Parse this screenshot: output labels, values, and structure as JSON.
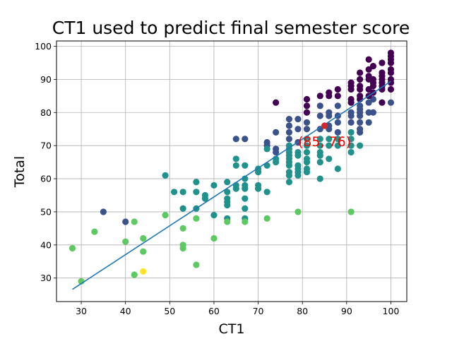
{
  "chart_data": {
    "type": "scatter",
    "title": "CT1 used to predict final semester score",
    "xlabel": "CT1",
    "ylabel": "Total",
    "xlim": [
      24.4,
      103.6
    ],
    "ylim": [
      22.9,
      101.6
    ],
    "xticks": [
      30,
      40,
      50,
      60,
      70,
      80,
      90,
      100
    ],
    "yticks": [
      30,
      40,
      50,
      60,
      70,
      80,
      90,
      100
    ],
    "grid": true,
    "colors": {
      "fit_line": "#1f77b4",
      "highlight": "#d62728",
      "annotation": "#ff0000",
      "grid": "#b0b0b0",
      "palette": [
        "#440154",
        "#3b528b",
        "#21918c",
        "#5ec962",
        "#fde725"
      ]
    },
    "points": [
      {
        "x": 100,
        "y": 98,
        "c": 0
      },
      {
        "x": 100,
        "y": 97,
        "c": 0
      },
      {
        "x": 100,
        "y": 96,
        "c": 0
      },
      {
        "x": 100,
        "y": 95,
        "c": 0
      },
      {
        "x": 100,
        "y": 93,
        "c": 0
      },
      {
        "x": 100,
        "y": 92,
        "c": 0
      },
      {
        "x": 100,
        "y": 90,
        "c": 0
      },
      {
        "x": 100,
        "y": 89,
        "c": 0
      },
      {
        "x": 100,
        "y": 87,
        "c": 0
      },
      {
        "x": 100,
        "y": 83,
        "c": 1
      },
      {
        "x": 98,
        "y": 95,
        "c": 0
      },
      {
        "x": 98,
        "y": 92,
        "c": 0
      },
      {
        "x": 98,
        "y": 91,
        "c": 0
      },
      {
        "x": 98,
        "y": 90,
        "c": 0
      },
      {
        "x": 98,
        "y": 89,
        "c": 0
      },
      {
        "x": 98,
        "y": 88,
        "c": 0
      },
      {
        "x": 98,
        "y": 87,
        "c": 0
      },
      {
        "x": 98,
        "y": 83,
        "c": 0
      },
      {
        "x": 96,
        "y": 94,
        "c": 0
      },
      {
        "x": 96,
        "y": 90,
        "c": 0
      },
      {
        "x": 96,
        "y": 89,
        "c": 0
      },
      {
        "x": 96,
        "y": 88,
        "c": 0
      },
      {
        "x": 96,
        "y": 86,
        "c": 0
      },
      {
        "x": 96,
        "y": 84,
        "c": 1
      },
      {
        "x": 96,
        "y": 80,
        "c": 1
      },
      {
        "x": 95,
        "y": 96,
        "c": 0
      },
      {
        "x": 95,
        "y": 93,
        "c": 0
      },
      {
        "x": 95,
        "y": 91,
        "c": 0
      },
      {
        "x": 95,
        "y": 90,
        "c": 0
      },
      {
        "x": 95,
        "y": 87,
        "c": 0
      },
      {
        "x": 95,
        "y": 85,
        "c": 0
      },
      {
        "x": 95,
        "y": 83,
        "c": 1
      },
      {
        "x": 95,
        "y": 80,
        "c": 1
      },
      {
        "x": 95,
        "y": 77,
        "c": 1
      },
      {
        "x": 93,
        "y": 92,
        "c": 0
      },
      {
        "x": 93,
        "y": 90,
        "c": 0
      },
      {
        "x": 93,
        "y": 88,
        "c": 0
      },
      {
        "x": 93,
        "y": 87,
        "c": 0
      },
      {
        "x": 93,
        "y": 85,
        "c": 0
      },
      {
        "x": 93,
        "y": 84,
        "c": 0
      },
      {
        "x": 93,
        "y": 82,
        "c": 1
      },
      {
        "x": 93,
        "y": 81,
        "c": 1
      },
      {
        "x": 93,
        "y": 80,
        "c": 1
      },
      {
        "x": 93,
        "y": 79,
        "c": 1
      },
      {
        "x": 93,
        "y": 77,
        "c": 1
      },
      {
        "x": 93,
        "y": 75,
        "c": 1
      },
      {
        "x": 93,
        "y": 74,
        "c": 1
      },
      {
        "x": 93,
        "y": 70,
        "c": 2
      },
      {
        "x": 91,
        "y": 89,
        "c": 0
      },
      {
        "x": 91,
        "y": 88,
        "c": 0
      },
      {
        "x": 91,
        "y": 87,
        "c": 0
      },
      {
        "x": 91,
        "y": 84,
        "c": 0
      },
      {
        "x": 91,
        "y": 83,
        "c": 0
      },
      {
        "x": 91,
        "y": 80,
        "c": 1
      },
      {
        "x": 91,
        "y": 79,
        "c": 1
      },
      {
        "x": 91,
        "y": 77,
        "c": 1
      },
      {
        "x": 91,
        "y": 74,
        "c": 2
      },
      {
        "x": 91,
        "y": 72,
        "c": 2
      },
      {
        "x": 91,
        "y": 70,
        "c": 2
      },
      {
        "x": 91,
        "y": 68,
        "c": 2
      },
      {
        "x": 91,
        "y": 50,
        "c": 3
      },
      {
        "x": 88,
        "y": 87,
        "c": 0
      },
      {
        "x": 88,
        "y": 85,
        "c": 0
      },
      {
        "x": 88,
        "y": 82,
        "c": 1
      },
      {
        "x": 88,
        "y": 79,
        "c": 1
      },
      {
        "x": 88,
        "y": 77,
        "c": 1
      },
      {
        "x": 88,
        "y": 74,
        "c": 1
      },
      {
        "x": 88,
        "y": 72,
        "c": 2
      },
      {
        "x": 88,
        "y": 70,
        "c": 2
      },
      {
        "x": 88,
        "y": 63,
        "c": 2
      },
      {
        "x": 86,
        "y": 86,
        "c": 0
      },
      {
        "x": 86,
        "y": 85,
        "c": 0
      },
      {
        "x": 86,
        "y": 80,
        "c": 1
      },
      {
        "x": 86,
        "y": 79,
        "c": 1
      },
      {
        "x": 86,
        "y": 76,
        "c": 1
      },
      {
        "x": 86,
        "y": 75,
        "c": 1
      },
      {
        "x": 86,
        "y": 72,
        "c": 2
      },
      {
        "x": 86,
        "y": 70,
        "c": 2
      },
      {
        "x": 86,
        "y": 66,
        "c": 2
      },
      {
        "x": 84,
        "y": 85,
        "c": 0
      },
      {
        "x": 84,
        "y": 82,
        "c": 1
      },
      {
        "x": 84,
        "y": 79,
        "c": 1
      },
      {
        "x": 84,
        "y": 75,
        "c": 1
      },
      {
        "x": 84,
        "y": 72,
        "c": 2
      },
      {
        "x": 84,
        "y": 70,
        "c": 2
      },
      {
        "x": 84,
        "y": 68,
        "c": 2
      },
      {
        "x": 84,
        "y": 67,
        "c": 2
      },
      {
        "x": 84,
        "y": 65,
        "c": 2
      },
      {
        "x": 84,
        "y": 60,
        "c": 2
      },
      {
        "x": 81,
        "y": 84,
        "c": 0
      },
      {
        "x": 81,
        "y": 82,
        "c": 0
      },
      {
        "x": 81,
        "y": 80,
        "c": 0
      },
      {
        "x": 81,
        "y": 77,
        "c": 1
      },
      {
        "x": 81,
        "y": 75,
        "c": 1
      },
      {
        "x": 81,
        "y": 72,
        "c": 2
      },
      {
        "x": 81,
        "y": 70,
        "c": 2
      },
      {
        "x": 81,
        "y": 68,
        "c": 2
      },
      {
        "x": 81,
        "y": 66,
        "c": 2
      },
      {
        "x": 81,
        "y": 65,
        "c": 2
      },
      {
        "x": 81,
        "y": 63,
        "c": 2
      },
      {
        "x": 81,
        "y": 62,
        "c": 2
      },
      {
        "x": 79,
        "y": 78,
        "c": 1
      },
      {
        "x": 79,
        "y": 75,
        "c": 1
      },
      {
        "x": 79,
        "y": 71,
        "c": 1
      },
      {
        "x": 79,
        "y": 68,
        "c": 2
      },
      {
        "x": 79,
        "y": 67,
        "c": 2
      },
      {
        "x": 79,
        "y": 64,
        "c": 2
      },
      {
        "x": 79,
        "y": 63,
        "c": 2
      },
      {
        "x": 79,
        "y": 62,
        "c": 2
      },
      {
        "x": 79,
        "y": 61,
        "c": 2
      },
      {
        "x": 79,
        "y": 50,
        "c": 3
      },
      {
        "x": 77,
        "y": 78,
        "c": 1
      },
      {
        "x": 77,
        "y": 76,
        "c": 1
      },
      {
        "x": 77,
        "y": 74,
        "c": 1
      },
      {
        "x": 77,
        "y": 72,
        "c": 1
      },
      {
        "x": 77,
        "y": 70,
        "c": 2
      },
      {
        "x": 77,
        "y": 69,
        "c": 2
      },
      {
        "x": 77,
        "y": 68,
        "c": 2
      },
      {
        "x": 77,
        "y": 67,
        "c": 2
      },
      {
        "x": 77,
        "y": 66,
        "c": 2
      },
      {
        "x": 77,
        "y": 65,
        "c": 2
      },
      {
        "x": 77,
        "y": 64,
        "c": 2
      },
      {
        "x": 77,
        "y": 62,
        "c": 2
      },
      {
        "x": 77,
        "y": 61,
        "c": 2
      },
      {
        "x": 77,
        "y": 59,
        "c": 2
      },
      {
        "x": 74,
        "y": 83,
        "c": 0
      },
      {
        "x": 74,
        "y": 74,
        "c": 1
      },
      {
        "x": 74,
        "y": 69,
        "c": 1
      },
      {
        "x": 74,
        "y": 68,
        "c": 1
      },
      {
        "x": 74,
        "y": 66,
        "c": 2
      },
      {
        "x": 74,
        "y": 65,
        "c": 2
      },
      {
        "x": 72,
        "y": 71,
        "c": 1
      },
      {
        "x": 72,
        "y": 70,
        "c": 1
      },
      {
        "x": 72,
        "y": 69,
        "c": 2
      },
      {
        "x": 72,
        "y": 64,
        "c": 2
      },
      {
        "x": 72,
        "y": 56,
        "c": 2
      },
      {
        "x": 72,
        "y": 48,
        "c": 3
      },
      {
        "x": 70,
        "y": 63,
        "c": 2
      },
      {
        "x": 70,
        "y": 62,
        "c": 2
      },
      {
        "x": 70,
        "y": 58,
        "c": 2
      },
      {
        "x": 70,
        "y": 57,
        "c": 2
      },
      {
        "x": 67,
        "y": 72,
        "c": 1
      },
      {
        "x": 67,
        "y": 64,
        "c": 2
      },
      {
        "x": 67,
        "y": 60,
        "c": 2
      },
      {
        "x": 67,
        "y": 58,
        "c": 2
      },
      {
        "x": 67,
        "y": 57,
        "c": 2
      },
      {
        "x": 67,
        "y": 54,
        "c": 2
      },
      {
        "x": 67,
        "y": 51,
        "c": 2
      },
      {
        "x": 67,
        "y": 48,
        "c": 2
      },
      {
        "x": 67,
        "y": 47,
        "c": 3
      },
      {
        "x": 65,
        "y": 72,
        "c": 1
      },
      {
        "x": 65,
        "y": 66,
        "c": 2
      },
      {
        "x": 65,
        "y": 64,
        "c": 2
      },
      {
        "x": 65,
        "y": 58,
        "c": 2
      },
      {
        "x": 65,
        "y": 57,
        "c": 2
      },
      {
        "x": 63,
        "y": 59,
        "c": 2
      },
      {
        "x": 63,
        "y": 56,
        "c": 2
      },
      {
        "x": 63,
        "y": 54,
        "c": 2
      },
      {
        "x": 63,
        "y": 53,
        "c": 2
      },
      {
        "x": 63,
        "y": 52,
        "c": 2
      },
      {
        "x": 63,
        "y": 48,
        "c": 2
      },
      {
        "x": 63,
        "y": 47,
        "c": 3
      },
      {
        "x": 60,
        "y": 58,
        "c": 2
      },
      {
        "x": 60,
        "y": 49,
        "c": 2
      },
      {
        "x": 60,
        "y": 42,
        "c": 3
      },
      {
        "x": 58,
        "y": 55,
        "c": 2
      },
      {
        "x": 58,
        "y": 54,
        "c": 2
      },
      {
        "x": 56,
        "y": 59,
        "c": 2
      },
      {
        "x": 56,
        "y": 56,
        "c": 2
      },
      {
        "x": 56,
        "y": 51,
        "c": 2
      },
      {
        "x": 56,
        "y": 48,
        "c": 3
      },
      {
        "x": 56,
        "y": 34,
        "c": 3
      },
      {
        "x": 53,
        "y": 56,
        "c": 2
      },
      {
        "x": 53,
        "y": 51,
        "c": 2
      },
      {
        "x": 53,
        "y": 45,
        "c": 3
      },
      {
        "x": 53,
        "y": 40,
        "c": 3
      },
      {
        "x": 53,
        "y": 39,
        "c": 3
      },
      {
        "x": 51,
        "y": 56,
        "c": 2
      },
      {
        "x": 49,
        "y": 61,
        "c": 2
      },
      {
        "x": 49,
        "y": 49,
        "c": 3
      },
      {
        "x": 44,
        "y": 42,
        "c": 3
      },
      {
        "x": 44,
        "y": 38,
        "c": 3
      },
      {
        "x": 44,
        "y": 32,
        "c": 4
      },
      {
        "x": 42,
        "y": 47,
        "c": 3
      },
      {
        "x": 42,
        "y": 31,
        "c": 3
      },
      {
        "x": 40,
        "y": 47,
        "c": 1
      },
      {
        "x": 40,
        "y": 41,
        "c": 3
      },
      {
        "x": 35,
        "y": 50,
        "c": 1
      },
      {
        "x": 33,
        "y": 44,
        "c": 3
      },
      {
        "x": 30,
        "y": 29,
        "c": 3
      },
      {
        "x": 28,
        "y": 39,
        "c": 3
      }
    ],
    "fit_line": {
      "x": [
        28,
        100
      ],
      "y": [
        26.6,
        89.4
      ]
    },
    "highlight_point": {
      "x": 85,
      "y": 76
    },
    "annotation": "(85, 76)"
  }
}
